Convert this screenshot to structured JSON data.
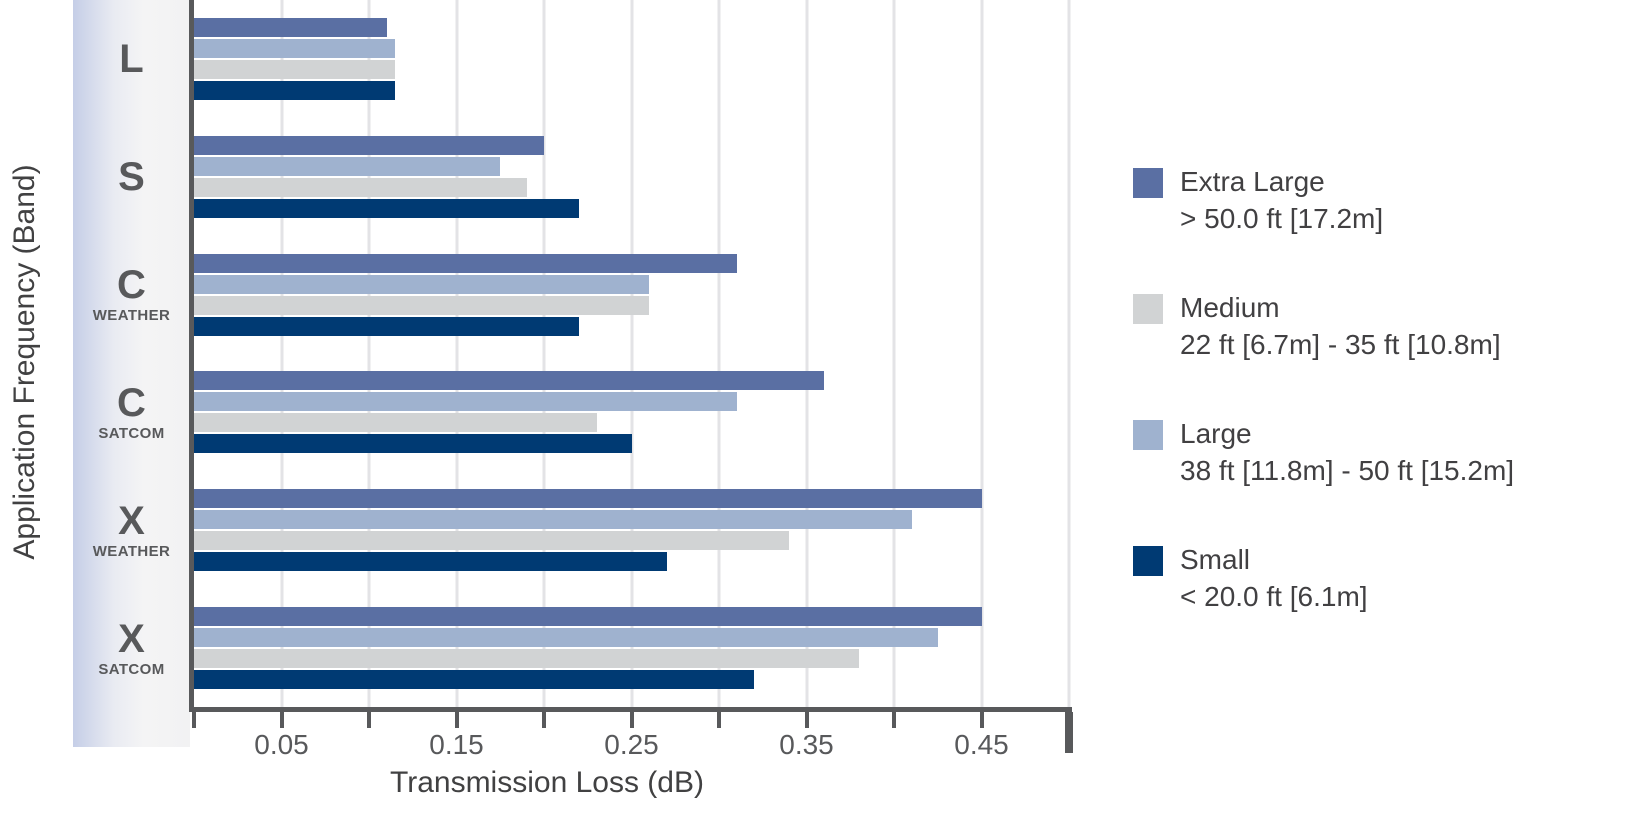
{
  "figure": {
    "x_axis_title": "Transmission Loss (dB)",
    "y_axis_title": "Application Frequency (Band)"
  },
  "chart_data": {
    "type": "bar",
    "orientation": "horizontal",
    "title": "",
    "xlabel": "Transmission Loss (dB)",
    "ylabel": "Application Frequency (Band)",
    "xlim": [
      0,
      0.5
    ],
    "x_tick_step": 0.05,
    "x_tick_labels": [
      {
        "value": 0.05,
        "label": "0.05"
      },
      {
        "value": 0.15,
        "label": "0.15"
      },
      {
        "value": 0.25,
        "label": "0.25"
      },
      {
        "value": 0.35,
        "label": "0.35"
      },
      {
        "value": 0.45,
        "label": "0.45"
      }
    ],
    "grid": "vertical",
    "legend_position": "right",
    "categories": [
      {
        "band": "L",
        "sub": ""
      },
      {
        "band": "S",
        "sub": ""
      },
      {
        "band": "C",
        "sub": "WEATHER"
      },
      {
        "band": "C",
        "sub": "SATCOM"
      },
      {
        "band": "X",
        "sub": "WEATHER"
      },
      {
        "band": "X",
        "sub": "SATCOM"
      }
    ],
    "series": [
      {
        "name": "Extra Large",
        "size_range": "> 50.0 ft [17.2m]",
        "color": "#5A6FA3",
        "values": [
          0.11,
          0.2,
          0.31,
          0.36,
          0.45,
          0.45
        ]
      },
      {
        "name": "Medium",
        "size_range": "22 ft [6.7m] - 35 ft [10.8m]",
        "color": "#D1D3D4",
        "values": [
          0.115,
          0.19,
          0.26,
          0.23,
          0.34,
          0.38
        ]
      },
      {
        "name": "Large",
        "size_range": "38 ft [11.8m] - 50 ft [15.2m]",
        "color": "#9FB2CF",
        "values": [
          0.115,
          0.175,
          0.26,
          0.31,
          0.41,
          0.425
        ]
      },
      {
        "name": "Small",
        "size_range": "< 20.0 ft [6.1m]",
        "color": "#003A73",
        "values": [
          0.115,
          0.22,
          0.22,
          0.25,
          0.27,
          0.32
        ]
      }
    ],
    "bar_order_top_to_bottom": [
      "Extra Large",
      "Large",
      "Medium",
      "Small"
    ],
    "axis_color": "#58595B",
    "gridline_color": "#E3E3E6",
    "label_color": "#58595B"
  }
}
